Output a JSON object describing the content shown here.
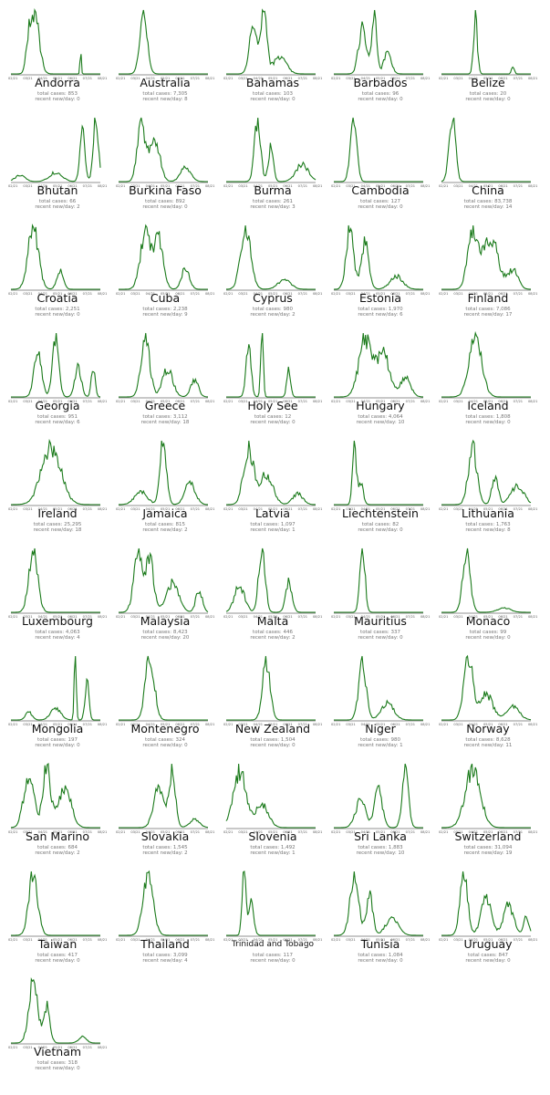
{
  "chart_data": {
    "type": "line",
    "x_tick_labels": [
      "02/21",
      "03/21",
      "04/21",
      "05/21",
      "06/21",
      "07/21",
      "08/21"
    ],
    "line_color": "#1a7a1a",
    "stat_labels": {
      "total_cases": "total cases:",
      "recent_newday": "recent new/day:"
    },
    "panels": [
      {
        "country": "Andorra",
        "total_cases": "853",
        "recent_newday": "0"
      },
      {
        "country": "Australia",
        "total_cases": "7,305",
        "recent_newday": "8"
      },
      {
        "country": "Bahamas",
        "total_cases": "103",
        "recent_newday": "0"
      },
      {
        "country": "Barbados",
        "total_cases": "96",
        "recent_newday": "0"
      },
      {
        "country": "Belize",
        "total_cases": "20",
        "recent_newday": "0"
      },
      {
        "country": "Bhutan",
        "total_cases": "66",
        "recent_newday": "2"
      },
      {
        "country": "Burkina Faso",
        "total_cases": "892",
        "recent_newday": "0"
      },
      {
        "country": "Burma",
        "total_cases": "261",
        "recent_newday": "3"
      },
      {
        "country": "Cambodia",
        "total_cases": "127",
        "recent_newday": "0"
      },
      {
        "country": "China",
        "total_cases": "83,738",
        "recent_newday": "14"
      },
      {
        "country": "Croatia",
        "total_cases": "2,251",
        "recent_newday": "0"
      },
      {
        "country": "Cuba",
        "total_cases": "2,238",
        "recent_newday": "9"
      },
      {
        "country": "Cyprus",
        "total_cases": "980",
        "recent_newday": "2"
      },
      {
        "country": "Estonia",
        "total_cases": "1,970",
        "recent_newday": "6"
      },
      {
        "country": "Finland",
        "total_cases": "7,086",
        "recent_newday": "17"
      },
      {
        "country": "Georgia",
        "total_cases": "951",
        "recent_newday": "6"
      },
      {
        "country": "Greece",
        "total_cases": "3,112",
        "recent_newday": "18"
      },
      {
        "country": "Holy See",
        "total_cases": "12",
        "recent_newday": "0"
      },
      {
        "country": "Hungary",
        "total_cases": "4,064",
        "recent_newday": "10"
      },
      {
        "country": "Iceland",
        "total_cases": "1,808",
        "recent_newday": "0"
      },
      {
        "country": "Ireland",
        "total_cases": "25,295",
        "recent_newday": "18"
      },
      {
        "country": "Jamaica",
        "total_cases": "815",
        "recent_newday": "2"
      },
      {
        "country": "Latvia",
        "total_cases": "1,097",
        "recent_newday": "1"
      },
      {
        "country": "Liechtenstein",
        "total_cases": "82",
        "recent_newday": "0"
      },
      {
        "country": "Lithuania",
        "total_cases": "1,763",
        "recent_newday": "8"
      },
      {
        "country": "Luxembourg",
        "total_cases": "4,063",
        "recent_newday": "4"
      },
      {
        "country": "Malaysia",
        "total_cases": "8,423",
        "recent_newday": "20"
      },
      {
        "country": "Malta",
        "total_cases": "446",
        "recent_newday": "2"
      },
      {
        "country": "Mauritius",
        "total_cases": "337",
        "recent_newday": "0"
      },
      {
        "country": "Monaco",
        "total_cases": "99",
        "recent_newday": "0"
      },
      {
        "country": "Mongolia",
        "total_cases": "197",
        "recent_newday": "0"
      },
      {
        "country": "Montenegro",
        "total_cases": "324",
        "recent_newday": "0"
      },
      {
        "country": "New Zealand",
        "total_cases": "1,504",
        "recent_newday": "0"
      },
      {
        "country": "Niger",
        "total_cases": "980",
        "recent_newday": "1"
      },
      {
        "country": "Norway",
        "total_cases": "8,628",
        "recent_newday": "11"
      },
      {
        "country": "San Marino",
        "total_cases": "684",
        "recent_newday": "2"
      },
      {
        "country": "Slovakia",
        "total_cases": "1,545",
        "recent_newday": "2"
      },
      {
        "country": "Slovenia",
        "total_cases": "1,492",
        "recent_newday": "1"
      },
      {
        "country": "Sri Lanka",
        "total_cases": "1,883",
        "recent_newday": "10"
      },
      {
        "country": "Switzerland",
        "total_cases": "31,094",
        "recent_newday": "19"
      },
      {
        "country": "Taiwan",
        "total_cases": "417",
        "recent_newday": "0"
      },
      {
        "country": "Thailand",
        "total_cases": "3,099",
        "recent_newday": "4"
      },
      {
        "country": "Trinidad and Tobago",
        "total_cases": "117",
        "recent_newday": "0"
      },
      {
        "country": "Tunisia",
        "total_cases": "1,084",
        "recent_newday": "0"
      },
      {
        "country": "Uruguay",
        "total_cases": "847",
        "recent_newday": "0"
      },
      {
        "country": "Vietnam",
        "total_cases": "318",
        "recent_newday": "0"
      }
    ]
  }
}
